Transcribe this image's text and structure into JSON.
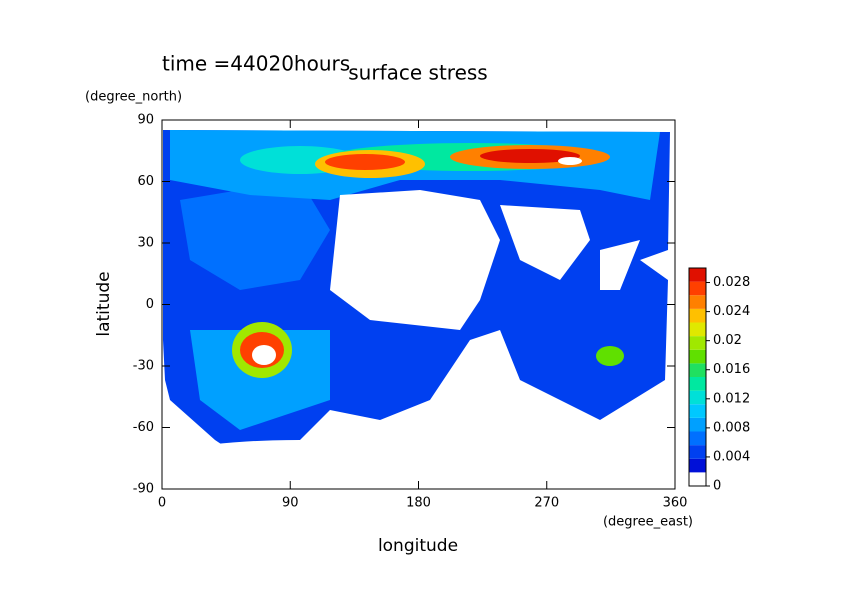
{
  "chart_data": {
    "type": "contour",
    "title": "surface stress",
    "annotation": "time =44020hours",
    "xlabel": "longitude",
    "ylabel": "latitude",
    "xunit": "(degree_east)",
    "yunit": "(degree_north)",
    "xlim": [
      0,
      360
    ],
    "xticks": [
      0,
      90,
      180,
      270,
      360
    ],
    "ylim": [
      -90,
      90
    ],
    "yticks": [
      -90,
      -60,
      -30,
      0,
      30,
      60,
      90
    ],
    "colorbar": {
      "lim": [
        0,
        0.03
      ],
      "ticks": [
        0,
        0.004,
        0.008,
        0.012,
        0.016,
        0.02,
        0.024,
        0.028
      ],
      "colors": [
        "#ffffff",
        "#0010d8",
        "#0040f0",
        "#0070ff",
        "#00a0ff",
        "#00c8ff",
        "#00e0d8",
        "#00e8a0",
        "#20e060",
        "#60e000",
        "#a0e800",
        "#e0e800",
        "#ffc000",
        "#ff8000",
        "#ff4000",
        "#e01000"
      ]
    }
  }
}
